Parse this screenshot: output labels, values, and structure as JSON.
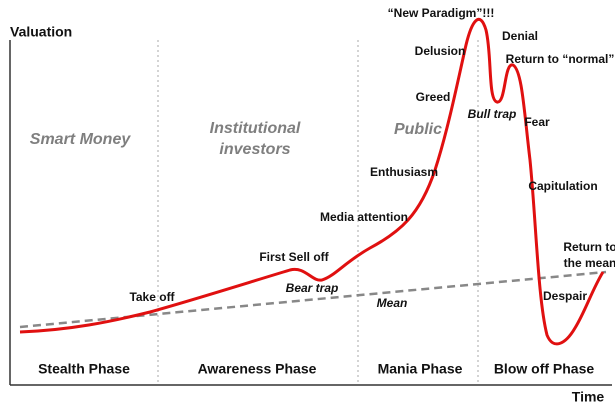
{
  "axes": {
    "y_label": "Valuation",
    "x_label": "Time"
  },
  "groups": [
    {
      "lines": [
        "Smart Money"
      ]
    },
    {
      "lines": [
        "Institutional",
        "investors"
      ]
    },
    {
      "lines": [
        "Public"
      ]
    }
  ],
  "phases": [
    "Stealth Phase",
    "Awareness Phase",
    "Mania Phase",
    "Blow off Phase"
  ],
  "events": [
    {
      "lines": [
        "Take off"
      ]
    },
    {
      "lines": [
        "First Sell off"
      ]
    },
    {
      "lines": [
        "Bear trap"
      ]
    },
    {
      "lines": [
        "Media attention"
      ]
    },
    {
      "lines": [
        "Enthusiasm"
      ]
    },
    {
      "lines": [
        "Greed"
      ]
    },
    {
      "lines": [
        "Delusion"
      ]
    },
    {
      "lines": [
        "“New Paradigm”!!!"
      ]
    },
    {
      "lines": [
        "Denial"
      ]
    },
    {
      "lines": [
        "Bull trap"
      ]
    },
    {
      "lines": [
        "Return to “normal”"
      ]
    },
    {
      "lines": [
        "Fear"
      ]
    },
    {
      "lines": [
        "Capitulation"
      ]
    },
    {
      "lines": [
        "Despair"
      ]
    },
    {
      "lines": [
        "Return to",
        "the mean"
      ]
    }
  ],
  "mean_label": "Mean"
}
